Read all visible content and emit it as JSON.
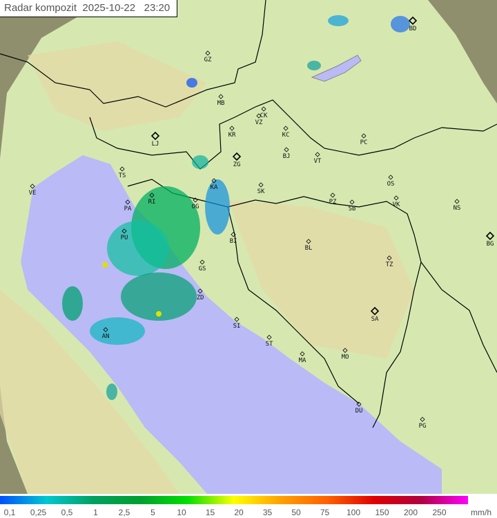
{
  "header": {
    "title": "Radar kompozit",
    "date": "2025-10-22",
    "time": "23:20"
  },
  "colors": {
    "sea": "#babaf6",
    "land": "#d6e8b0",
    "outside": "#8f8f6e",
    "border": "#000000"
  },
  "cities": [
    {
      "code": "GZ"
    },
    {
      "code": "MB"
    },
    {
      "code": "CK"
    },
    {
      "code": "VZ"
    },
    {
      "code": "KR"
    },
    {
      "code": "LJ"
    },
    {
      "code": "ZG"
    },
    {
      "code": "KC"
    },
    {
      "code": "BJ"
    },
    {
      "code": "VT"
    },
    {
      "code": "KA"
    },
    {
      "code": "SK"
    },
    {
      "code": "RI"
    },
    {
      "code": "OG"
    },
    {
      "code": "PZ"
    },
    {
      "code": "SB"
    },
    {
      "code": "OS"
    },
    {
      "code": "VK"
    },
    {
      "code": "PC"
    },
    {
      "code": "BD"
    },
    {
      "code": "NS"
    },
    {
      "code": "BG"
    },
    {
      "code": "TZ"
    },
    {
      "code": "BL"
    },
    {
      "code": "BI"
    },
    {
      "code": "VE"
    },
    {
      "code": "TS"
    },
    {
      "code": "PA"
    },
    {
      "code": "PU"
    },
    {
      "code": "GS"
    },
    {
      "code": "ZD"
    },
    {
      "code": "SI"
    },
    {
      "code": "SA"
    },
    {
      "code": "ST"
    },
    {
      "code": "MA"
    },
    {
      "code": "MO"
    },
    {
      "code": "DU"
    },
    {
      "code": "PG"
    },
    {
      "code": "AN"
    }
  ],
  "legend": {
    "unit": "mm/h",
    "labels": [
      "0,1",
      "0,25",
      "0,5",
      "1",
      "2,5",
      "5",
      "10",
      "15",
      "20",
      "35",
      "50",
      "75",
      "100",
      "150",
      "200",
      "250"
    ],
    "gradient": [
      "#0050ff",
      "#00c8d0",
      "#00a060",
      "#00a030",
      "#00e000",
      "#ffff00",
      "#ffa000",
      "#ff6000",
      "#e00000",
      "#b00040",
      "#ff00ff"
    ]
  }
}
